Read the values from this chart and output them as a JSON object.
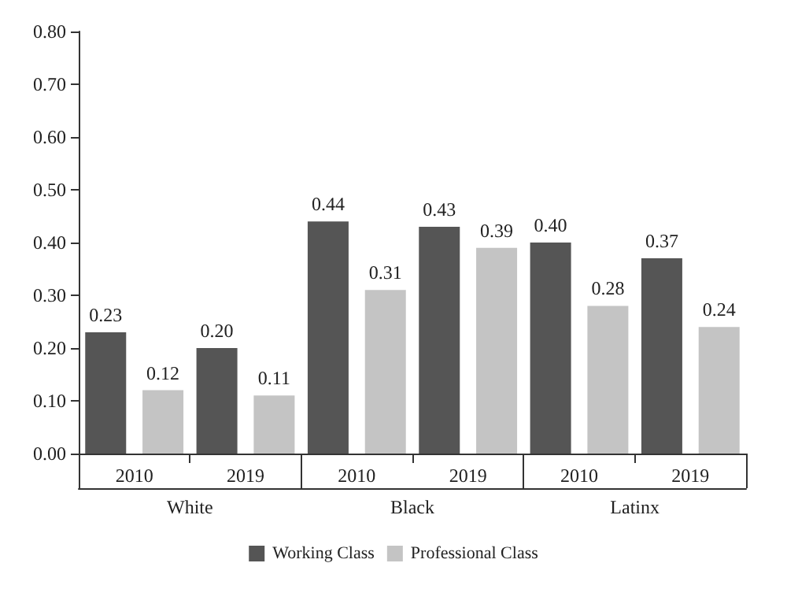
{
  "chart_data": {
    "type": "bar",
    "categories": [
      "2010",
      "2019",
      "2010",
      "2019",
      "2010",
      "2019"
    ],
    "series": [
      {
        "name": "Working Class",
        "color": "#555555",
        "values": [
          0.23,
          0.2,
          0.44,
          0.43,
          0.4,
          0.37
        ],
        "value_labels": [
          "0.23",
          "0.20",
          "0.44",
          "0.43",
          "0.40",
          "0.37"
        ]
      },
      {
        "name": "Professional Class",
        "color": "#c4c4c4",
        "values": [
          0.12,
          0.11,
          0.31,
          0.39,
          0.28,
          0.24
        ],
        "value_labels": [
          "0.12",
          "0.11",
          "0.31",
          "0.39",
          "0.28",
          "0.24"
        ]
      }
    ],
    "annotations": [
      "White",
      "Black",
      "Latinx"
    ],
    "ylim": [
      0,
      0.8
    ],
    "yticks": [
      {
        "value": 0,
        "label": "0.00"
      },
      {
        "value": 0.1,
        "label": "0.10"
      },
      {
        "value": 0.2,
        "label": "0.20"
      },
      {
        "value": 0.3,
        "label": "0.30"
      },
      {
        "value": 0.4,
        "label": "0.40"
      },
      {
        "value": 0.5,
        "label": "0.50"
      },
      {
        "value": 0.6,
        "label": "0.60"
      },
      {
        "value": 0.7,
        "label": "0.70"
      },
      {
        "value": 0.8,
        "label": "0.80"
      }
    ],
    "grid": false,
    "legend": "bottom"
  }
}
